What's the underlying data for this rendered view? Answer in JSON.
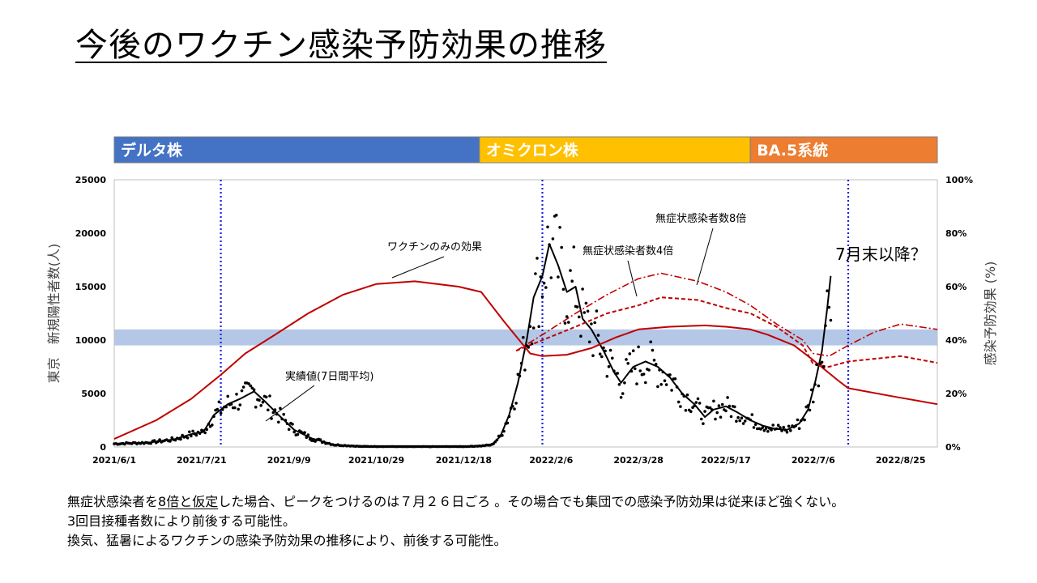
{
  "title": "今後のワクチン感染予防効果の推移",
  "variants": [
    {
      "label": "デルタ株",
      "start": "2021-06-01",
      "end": "2021-12-27",
      "color": "#4472C4"
    },
    {
      "label": "オミクロン株",
      "start": "2021-12-27",
      "end": "2022-05-31",
      "color": "#FFC000"
    },
    {
      "label": "BA.5系統",
      "start": "2022-05-31",
      "end": "2022-09-15",
      "color": "#ED7D31"
    }
  ],
  "notes": {
    "line1_a": "無症状感染者を",
    "line1_b": "8倍と仮定",
    "line1_c": "した場合、ピークをつけるのは７月２６日ごろ 。その場合でも集団での感染予防効果は従来ほど強くない。",
    "line2": "3回目接種者数により前後する可能性。",
    "line3": "換気、猛暑によるワクチンの感染予防効果の推移により、前後する可能性。"
  },
  "chart_data": {
    "type": "line",
    "ylabel": "東京　新規陽性者数(人)",
    "y2label": "感染予防効果 (%)",
    "xlim": [
      "2021-06-01",
      "2022-09-15"
    ],
    "ylim": [
      0,
      25000
    ],
    "y2lim": [
      0,
      100
    ],
    "x_ticks": [
      "2021/6/1",
      "2021/7/21",
      "2021/9/9",
      "2021/10/29",
      "2021/12/18",
      "2022/2/6",
      "2022/3/28",
      "2022/5/17",
      "2022/7/6",
      "2022/8/25"
    ],
    "y_ticks": [
      "0",
      "5000",
      "10000",
      "15000",
      "20000",
      "25000"
    ],
    "y2_ticks": [
      "0%",
      "20%",
      "40%",
      "60%",
      "80%",
      "100%"
    ],
    "vlines": [
      "2021-08-01",
      "2022-02-01",
      "2022-07-26"
    ],
    "band_y2": [
      38,
      44
    ],
    "band_color": "#B4C7E7",
    "series": [
      {
        "name": "実績値(7日間平均)",
        "axis": "left",
        "style": "solid-black",
        "points": [
          [
            "2021-06-01",
            300
          ],
          [
            "2021-06-20",
            400
          ],
          [
            "2021-07-05",
            700
          ],
          [
            "2021-07-15",
            1200
          ],
          [
            "2021-07-22",
            1400
          ],
          [
            "2021-07-28",
            3000
          ],
          [
            "2021-08-05",
            4000
          ],
          [
            "2021-08-12",
            4500
          ],
          [
            "2021-08-20",
            5200
          ],
          [
            "2021-08-26",
            4300
          ],
          [
            "2021-09-03",
            3000
          ],
          [
            "2021-09-12",
            1600
          ],
          [
            "2021-09-22",
            800
          ],
          [
            "2021-10-05",
            200
          ],
          [
            "2021-10-20",
            50
          ],
          [
            "2021-11-15",
            30
          ],
          [
            "2021-12-20",
            40
          ],
          [
            "2021-12-28",
            100
          ],
          [
            "2022-01-03",
            200
          ],
          [
            "2022-01-08",
            1000
          ],
          [
            "2022-01-13",
            3000
          ],
          [
            "2022-01-18",
            6000
          ],
          [
            "2022-01-23",
            10000
          ],
          [
            "2022-01-27",
            14000
          ],
          [
            "2022-02-01",
            16000
          ],
          [
            "2022-02-05",
            19000
          ],
          [
            "2022-02-10",
            17000
          ],
          [
            "2022-02-15",
            14500
          ],
          [
            "2022-02-20",
            15000
          ],
          [
            "2022-02-24",
            12000
          ],
          [
            "2022-03-01",
            11000
          ],
          [
            "2022-03-08",
            9000
          ],
          [
            "2022-03-14",
            7000
          ],
          [
            "2022-03-18",
            6000
          ],
          [
            "2022-03-25",
            7500
          ],
          [
            "2022-04-01",
            8000
          ],
          [
            "2022-04-08",
            7500
          ],
          [
            "2022-04-15",
            6500
          ],
          [
            "2022-04-22",
            5000
          ],
          [
            "2022-04-29",
            4000
          ],
          [
            "2022-05-05",
            2800
          ],
          [
            "2022-05-10",
            3500
          ],
          [
            "2022-05-17",
            3800
          ],
          [
            "2022-05-24",
            3200
          ],
          [
            "2022-05-31",
            2500
          ],
          [
            "2022-06-07",
            2000
          ],
          [
            "2022-06-14",
            1700
          ],
          [
            "2022-06-21",
            1600
          ],
          [
            "2022-06-28",
            2200
          ],
          [
            "2022-07-03",
            3500
          ],
          [
            "2022-07-07",
            6000
          ],
          [
            "2022-07-11",
            9000
          ],
          [
            "2022-07-14",
            13000
          ],
          [
            "2022-07-16",
            16000
          ]
        ]
      },
      {
        "name": "ワクチンのみの効果",
        "axis": "right",
        "style": "solid-red",
        "points": [
          [
            "2021-06-01",
            3
          ],
          [
            "2021-06-25",
            10
          ],
          [
            "2021-07-15",
            18
          ],
          [
            "2021-08-01",
            27
          ],
          [
            "2021-08-15",
            35
          ],
          [
            "2021-09-01",
            42
          ],
          [
            "2021-09-20",
            50
          ],
          [
            "2021-10-10",
            57
          ],
          [
            "2021-10-29",
            61
          ],
          [
            "2021-11-20",
            62
          ],
          [
            "2021-12-15",
            60
          ],
          [
            "2021-12-28",
            58
          ],
          [
            "2022-01-10",
            47
          ],
          [
            "2022-01-25",
            35
          ],
          [
            "2022-02-01",
            34
          ],
          [
            "2022-02-15",
            34.5
          ],
          [
            "2022-03-01",
            37
          ],
          [
            "2022-03-15",
            41
          ],
          [
            "2022-03-28",
            44
          ],
          [
            "2022-04-15",
            45
          ],
          [
            "2022-05-05",
            45.5
          ],
          [
            "2022-05-17",
            45
          ],
          [
            "2022-05-31",
            44
          ],
          [
            "2022-06-10",
            42
          ],
          [
            "2022-06-25",
            38
          ],
          [
            "2022-07-05",
            33
          ],
          [
            "2022-07-20",
            25
          ],
          [
            "2022-07-26",
            22
          ],
          [
            "2022-08-20",
            19
          ],
          [
            "2022-09-15",
            16
          ]
        ]
      },
      {
        "name": "無症状感染者数4倍",
        "axis": "right",
        "style": "dashed-red",
        "points": [
          [
            "2022-01-17",
            36
          ],
          [
            "2022-02-01",
            40
          ],
          [
            "2022-02-20",
            45
          ],
          [
            "2022-03-10",
            50
          ],
          [
            "2022-03-28",
            53
          ],
          [
            "2022-04-10",
            56
          ],
          [
            "2022-05-01",
            55
          ],
          [
            "2022-05-17",
            52
          ],
          [
            "2022-05-31",
            50
          ],
          [
            "2022-06-15",
            45
          ],
          [
            "2022-06-30",
            38
          ],
          [
            "2022-07-06",
            31
          ],
          [
            "2022-07-15",
            30
          ],
          [
            "2022-07-26",
            32
          ],
          [
            "2022-08-10",
            33
          ],
          [
            "2022-08-25",
            34
          ],
          [
            "2022-09-15",
            31.5
          ]
        ]
      },
      {
        "name": "無症状感染者数8倍",
        "axis": "right",
        "style": "dashdot-red",
        "points": [
          [
            "2022-01-17",
            36
          ],
          [
            "2022-02-01",
            42
          ],
          [
            "2022-02-20",
            50
          ],
          [
            "2022-03-10",
            57
          ],
          [
            "2022-03-28",
            63
          ],
          [
            "2022-04-10",
            65
          ],
          [
            "2022-05-01",
            62
          ],
          [
            "2022-05-17",
            58
          ],
          [
            "2022-05-31",
            53
          ],
          [
            "2022-06-15",
            46
          ],
          [
            "2022-06-30",
            40
          ],
          [
            "2022-07-06",
            35
          ],
          [
            "2022-07-15",
            34
          ],
          [
            "2022-07-26",
            38
          ],
          [
            "2022-08-10",
            43
          ],
          [
            "2022-08-25",
            46
          ],
          [
            "2022-09-15",
            44
          ]
        ]
      }
    ],
    "annotations": [
      {
        "text": "ワクチンのみの効果"
      },
      {
        "text": "無症状感染者数8倍"
      },
      {
        "text": "無症状感染者数4倍"
      },
      {
        "text": "実績値(7日間平均)"
      },
      {
        "text": "7月末以降？"
      }
    ]
  }
}
